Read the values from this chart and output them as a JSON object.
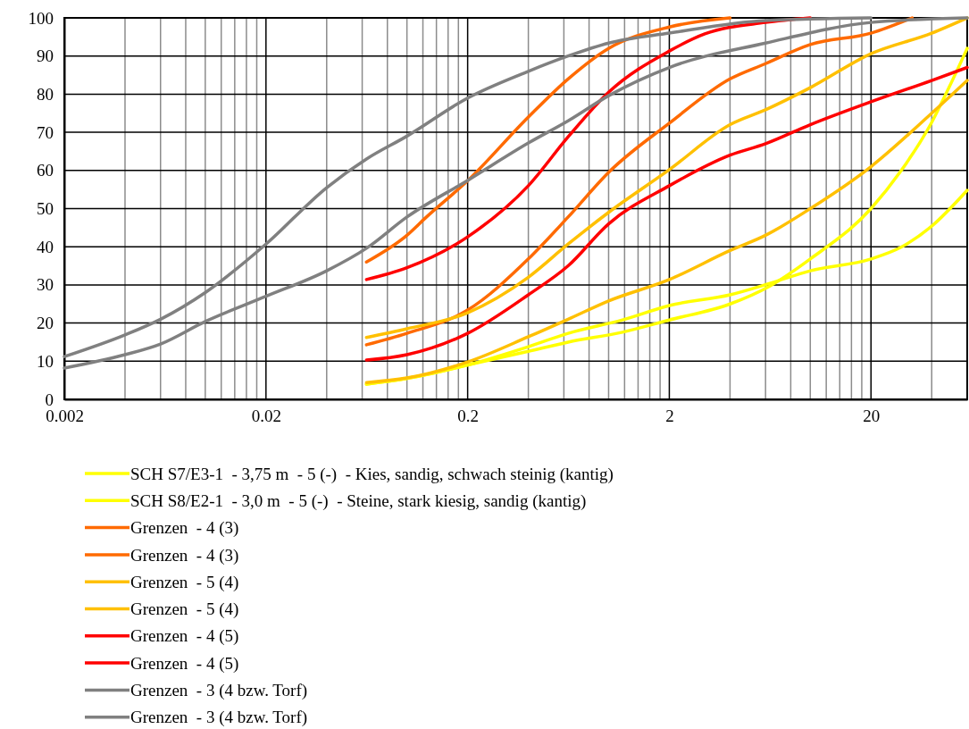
{
  "chart_data": {
    "type": "line",
    "xlim": [
      0.002,
      60
    ],
    "ylim": [
      0,
      100
    ],
    "log": "x",
    "grid": true,
    "legend": "bottom",
    "marker": "none",
    "line_style": "solid",
    "xticks": [
      {
        "value": 0.002,
        "label": "0.002"
      },
      {
        "value": 0.004,
        "label": null
      },
      {
        "value": 0.006,
        "label": null
      },
      {
        "value": 0.008,
        "label": null
      },
      {
        "value": 0.01,
        "label": null
      },
      {
        "value": 0.012,
        "label": null
      },
      {
        "value": 0.014,
        "label": null
      },
      {
        "value": 0.016,
        "label": null
      },
      {
        "value": 0.018,
        "label": null
      },
      {
        "value": 0.02,
        "label": "0.02"
      },
      {
        "value": 0.04,
        "label": null
      },
      {
        "value": 0.06,
        "label": null
      },
      {
        "value": 0.08,
        "label": null
      },
      {
        "value": 0.1,
        "label": null
      },
      {
        "value": 0.12,
        "label": null
      },
      {
        "value": 0.14,
        "label": null
      },
      {
        "value": 0.16,
        "label": null
      },
      {
        "value": 0.18,
        "label": null
      },
      {
        "value": 0.2,
        "label": "0.2"
      },
      {
        "value": 0.4,
        "label": null
      },
      {
        "value": 0.6,
        "label": null
      },
      {
        "value": 0.8,
        "label": null
      },
      {
        "value": 1,
        "label": null
      },
      {
        "value": 1.2,
        "label": null
      },
      {
        "value": 1.4,
        "label": null
      },
      {
        "value": 1.6,
        "label": null
      },
      {
        "value": 1.8,
        "label": null
      },
      {
        "value": 2,
        "label": "2"
      },
      {
        "value": 4,
        "label": null
      },
      {
        "value": 6,
        "label": null
      },
      {
        "value": 8,
        "label": null
      },
      {
        "value": 10,
        "label": null
      },
      {
        "value": 12,
        "label": null
      },
      {
        "value": 14,
        "label": null
      },
      {
        "value": 16,
        "label": null
      },
      {
        "value": 18,
        "label": null
      },
      {
        "value": 20,
        "label": "20"
      },
      {
        "value": 40,
        "label": null
      }
    ],
    "yticks": [
      0,
      10,
      20,
      30,
      40,
      50,
      60,
      70,
      80,
      90,
      100
    ],
    "series": [
      {
        "name": "SCH S7/E3-1  - 3,75 m  - 5 (-)  - Kies, sandig, schwach steinig (kantig)",
        "color": "#ffff00",
        "x": [
          0.063,
          0.1,
          0.2,
          0.4,
          0.63,
          1.17,
          2,
          4,
          6.3,
          10,
          20,
          28,
          40,
          49,
          60
        ],
        "values": [
          4,
          5.5,
          9,
          12.6,
          15,
          17.6,
          20.8,
          25,
          29.7,
          36.8,
          50,
          59.7,
          72.6,
          82,
          92
        ]
      },
      {
        "name": "SCH S8/E2-1  - 3,0 m  - 5 (-)  - Steine, stark kiesig, sandig (kantig)",
        "color": "#ffff00",
        "x": [
          0.063,
          0.1,
          0.2,
          0.4,
          0.63,
          1.17,
          2,
          4,
          6.3,
          10,
          20,
          28,
          40,
          60
        ],
        "values": [
          4,
          5.5,
          9,
          13.8,
          17.3,
          20.8,
          24.6,
          27.4,
          30.4,
          33.7,
          36.8,
          39.8,
          45.4,
          54.8
        ]
      },
      {
        "name": "Grenzen  - 4 (3)",
        "color": "#ff6a00",
        "x": [
          0.063,
          0.1,
          0.125,
          0.2,
          0.4,
          0.63,
          1,
          2,
          4
        ],
        "values": [
          36,
          43,
          47.8,
          57.3,
          74,
          84,
          92,
          97.6,
          100
        ]
      },
      {
        "name": "Grenzen  - 4 (3)",
        "color": "#ff6a00",
        "x": [
          0.063,
          0.1,
          0.2,
          0.4,
          0.63,
          1,
          2,
          4,
          6,
          10,
          20,
          32
        ],
        "values": [
          14.3,
          17.3,
          23.4,
          36.8,
          47.8,
          59.5,
          72.4,
          84,
          88,
          93,
          96,
          100
        ]
      },
      {
        "name": "Grenzen  - 5 (4)",
        "color": "#ffc000",
        "x": [
          0.063,
          0.1,
          0.2,
          0.4,
          0.63,
          1,
          2,
          4,
          6,
          10,
          20,
          40,
          60
        ],
        "values": [
          16.2,
          18.5,
          22.7,
          32,
          40.7,
          49,
          60.2,
          72,
          75.9,
          81.7,
          90.6,
          96,
          100
        ]
      },
      {
        "name": "Grenzen  - 5 (4)",
        "color": "#ffc000",
        "x": [
          0.063,
          0.1,
          0.2,
          0.4,
          0.63,
          1,
          2,
          4,
          6,
          10,
          20,
          40,
          60
        ],
        "values": [
          4.4,
          5.6,
          9.8,
          16.4,
          21,
          25.8,
          31.4,
          39,
          43,
          50,
          61,
          75,
          83.6
        ]
      },
      {
        "name": "Grenzen  - 4 (5)",
        "color": "#ff0000",
        "x": [
          0.063,
          0.1,
          0.2,
          0.4,
          0.63,
          1,
          2,
          3,
          6,
          10
        ],
        "values": [
          31.4,
          34.5,
          42.6,
          56,
          68.8,
          80.5,
          91.3,
          95.8,
          98.8,
          100
        ]
      },
      {
        "name": "Grenzen  - 4 (5)",
        "color": "#ff0000",
        "x": [
          0.063,
          0.1,
          0.2,
          0.4,
          0.63,
          1,
          2,
          4,
          6,
          10,
          20,
          40,
          60
        ],
        "values": [
          10.3,
          11.7,
          17.3,
          27.4,
          35,
          46,
          56,
          64,
          67,
          72,
          78,
          83.6,
          87
        ]
      },
      {
        "name": "Grenzen  - 3 (4 bzw. Torf)",
        "color": "#808080",
        "x": [
          0.002,
          0.004,
          0.006,
          0.01,
          0.02,
          0.04,
          0.063,
          0.1,
          0.2,
          0.4,
          0.63,
          1,
          2,
          6,
          20
        ],
        "values": [
          11.2,
          16.9,
          21,
          28,
          40.7,
          55.5,
          63,
          69,
          79,
          86,
          90,
          93.4,
          96,
          99.3,
          100
        ]
      },
      {
        "name": "Grenzen  - 3 (4 bzw. Torf)",
        "color": "#808080",
        "x": [
          0.002,
          0.004,
          0.006,
          0.01,
          0.02,
          0.04,
          0.063,
          0.1,
          0.2,
          0.4,
          0.63,
          1,
          2,
          6,
          20,
          60
        ],
        "values": [
          8.2,
          11.7,
          14.5,
          20.4,
          27,
          33.7,
          39.6,
          47.8,
          57.4,
          67.2,
          73,
          79.6,
          87,
          93.4,
          98.8,
          100
        ]
      }
    ]
  }
}
